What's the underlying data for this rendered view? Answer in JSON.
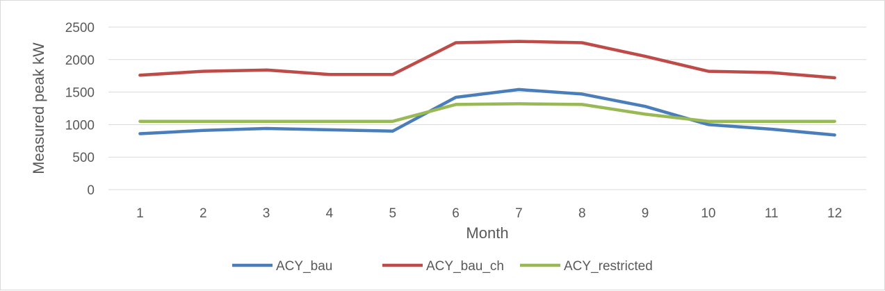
{
  "chart_data": {
    "type": "line",
    "title": "",
    "xlabel": "Month",
    "ylabel": "Measured peak kW",
    "categories": [
      "1",
      "2",
      "3",
      "4",
      "5",
      "6",
      "7",
      "8",
      "9",
      "10",
      "11",
      "12"
    ],
    "yticks": [
      "0",
      "500",
      "1000",
      "1500",
      "2000",
      "2500"
    ],
    "ylim": [
      0,
      2500
    ],
    "grid": true,
    "legend_position": "bottom",
    "series": [
      {
        "name": "ACY_bau",
        "color": "#4a7ebb",
        "values": [
          860,
          910,
          940,
          920,
          900,
          1420,
          1540,
          1470,
          1280,
          1000,
          930,
          840
        ]
      },
      {
        "name": "ACY_bau_ch",
        "color": "#be4b48",
        "values": [
          1760,
          1820,
          1840,
          1770,
          1770,
          2260,
          2280,
          2260,
          2050,
          1820,
          1800,
          1720
        ]
      },
      {
        "name": "ACY_restricted",
        "color": "#98b954",
        "values": [
          1050,
          1050,
          1050,
          1050,
          1050,
          1310,
          1320,
          1310,
          1160,
          1050,
          1050,
          1050
        ]
      }
    ]
  }
}
